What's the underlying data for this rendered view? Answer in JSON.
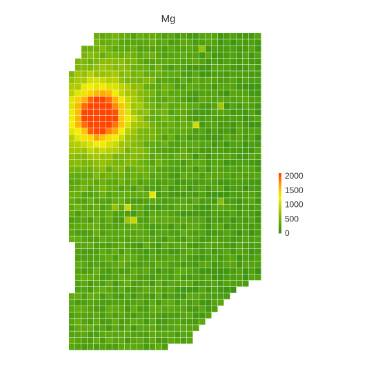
{
  "chart_data": {
    "type": "heatmap",
    "title": "Mg",
    "xlabel": "",
    "ylabel": "",
    "grid": false,
    "legend_position": "right",
    "colorbar": {
      "range": [
        0,
        2100
      ],
      "ticks": [
        0,
        500,
        1000,
        1500,
        2000
      ],
      "tick_labels": [
        "0",
        "500",
        "1000",
        "1500",
        "2000"
      ],
      "colors": [
        "#2e8b12",
        "#62ac0c",
        "#a8c800",
        "#f6f000",
        "#ffb000",
        "#ff4500"
      ]
    },
    "grid_size": {
      "columns": 31,
      "rows": 50
    },
    "row_extents": {
      "row_start": 0,
      "start": [
        4,
        4,
        2,
        2,
        1,
        1,
        0,
        0,
        0,
        0,
        0,
        0,
        0,
        0,
        0,
        0,
        0,
        0,
        0,
        0,
        0,
        0,
        0,
        0,
        0,
        0,
        0,
        0,
        0,
        0,
        0,
        0,
        0,
        0,
        0,
        0,
        0,
        0,
        0,
        0,
        0,
        0,
        0,
        0,
        0,
        0,
        0,
        0,
        0,
        0
      ],
      "end": [
        30,
        30,
        30,
        30,
        30,
        30,
        30,
        30,
        30,
        30,
        30,
        30,
        30,
        30,
        30,
        30,
        30,
        30,
        30,
        30,
        30,
        30,
        30,
        30,
        30,
        30,
        30,
        30,
        30,
        30,
        30,
        30,
        30,
        30,
        30,
        30,
        30,
        30,
        30,
        28,
        26,
        25,
        24,
        23,
        22,
        21,
        20,
        19,
        19,
        15
      ]
    },
    "baseline": {
      "field": "background",
      "value": 340,
      "variation": 120,
      "gradient_per_column": -4
    },
    "features": [
      {
        "name": "hotspot",
        "col": 4.5,
        "row": 12.5,
        "peak": 2050,
        "sigma": 2.6
      },
      {
        "name": "halo",
        "col": 4,
        "row": 12,
        "peak": 600,
        "sigma": 6.5
      },
      {
        "name": "spot-1",
        "col": 20,
        "row": 14,
        "value": 1050
      },
      {
        "name": "spot-2",
        "col": 13,
        "row": 25,
        "value": 1150
      },
      {
        "name": "spot-3",
        "col": 9,
        "row": 27,
        "value": 1000
      },
      {
        "name": "spot-4",
        "col": 10,
        "row": 29,
        "value": 1000
      },
      {
        "name": "spot-5",
        "col": 9,
        "row": 29,
        "value": 800
      },
      {
        "name": "spot-6",
        "col": 24,
        "row": 11,
        "value": 800
      },
      {
        "name": "spot-7",
        "col": 21,
        "row": 2,
        "value": 750
      },
      {
        "name": "spot-8",
        "col": 24,
        "row": 26,
        "value": 650
      },
      {
        "name": "spot-9",
        "col": 7,
        "row": 27,
        "value": 700
      }
    ],
    "empty_cells": [
      [
        0,
        33
      ],
      [
        0,
        34
      ],
      [
        0,
        35
      ],
      [
        0,
        36
      ],
      [
        0,
        37
      ],
      [
        0,
        38
      ],
      [
        0,
        39
      ],
      [
        0,
        40
      ]
    ]
  }
}
